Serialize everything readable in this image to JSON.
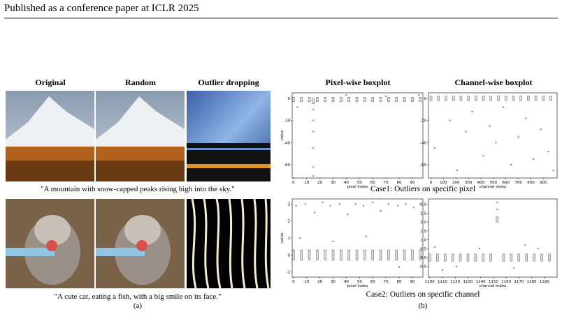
{
  "header": {
    "text": "Published as a conference paper at ICLR 2025"
  },
  "figure_a": {
    "column_titles": [
      "Original",
      "Random",
      "Outlier dropping"
    ],
    "captions": [
      "\"A mountain with snow-capped peaks rising high into the sky.\"",
      "\"A cute cat, eating a fish, with a big smile on its face.\""
    ],
    "label": "(a)"
  },
  "figure_b": {
    "column_titles": [
      "Pixel-wise boxplot",
      "Channel-wise boxplot"
    ],
    "case_captions": [
      "Case1: Outliers on specific pixel",
      "Case2: Outliers on specific channel"
    ],
    "label": "(b)"
  },
  "chart_data": [
    {
      "type": "box",
      "xlabel": "pixel index",
      "ylabel": "value",
      "xlim": [
        -1,
        98
      ],
      "xticks": [
        0,
        10,
        20,
        30,
        40,
        50,
        60,
        70,
        80,
        90
      ],
      "ylim": [
        -72,
        5
      ],
      "yticks": [
        0,
        -20,
        -40,
        -60
      ],
      "x": [
        0,
        6,
        12,
        15,
        18,
        24,
        30,
        36,
        42,
        48,
        54,
        60,
        66,
        72,
        78,
        84,
        90,
        96
      ],
      "low": [
        -3,
        -3,
        -3,
        -5,
        -3,
        -3,
        -3,
        -3,
        -3,
        -3,
        -3,
        -3,
        -3,
        -3,
        -3,
        -3,
        -3,
        -3
      ],
      "high": [
        1,
        1,
        1,
        0,
        1,
        1,
        1,
        1,
        1,
        1,
        1,
        1,
        1,
        1,
        1,
        1,
        1,
        1
      ],
      "outliers": {
        "x": [
          15,
          15,
          15,
          15,
          15,
          15,
          3,
          40,
          70,
          95
        ],
        "y": [
          -10,
          -20,
          -30,
          -45,
          -62,
          -70,
          -8,
          3,
          2,
          3
        ]
      }
    },
    {
      "type": "box",
      "xlabel": "channel index",
      "xlim": [
        -20,
        1010
      ],
      "xticks": [
        0,
        100,
        200,
        300,
        400,
        500,
        600,
        700,
        800,
        900
      ],
      "ylim": [
        -72,
        5
      ],
      "yticks": [
        0,
        -20,
        -40,
        -60
      ],
      "x": [
        0,
        60,
        120,
        180,
        240,
        300,
        360,
        420,
        480,
        540,
        600,
        660,
        720,
        780,
        840,
        900,
        960
      ],
      "low": [
        -2,
        -2,
        -2,
        -2,
        -2,
        -2,
        -2,
        -2,
        -2,
        -2,
        -2,
        -2,
        -2,
        -2,
        -2,
        -2,
        -2
      ],
      "high": [
        2,
        2,
        2,
        2,
        2,
        2,
        2,
        2,
        2,
        2,
        2,
        2,
        2,
        2,
        2,
        2,
        2
      ],
      "outliers": {
        "x": [
          30,
          150,
          210,
          280,
          330,
          420,
          470,
          520,
          580,
          640,
          700,
          760,
          820,
          880,
          940,
          980
        ],
        "y": [
          -45,
          -20,
          -65,
          -30,
          -12,
          -52,
          -25,
          -40,
          -8,
          -60,
          -35,
          -18,
          -55,
          -28,
          -48,
          -65
        ]
      }
    },
    {
      "type": "box",
      "xlabel": "pixel index",
      "ylabel": "value",
      "xlim": [
        -1,
        98
      ],
      "xticks": [
        0,
        10,
        20,
        30,
        40,
        50,
        60,
        70,
        80,
        90
      ],
      "ylim": [
        -1.3,
        3.3
      ],
      "yticks": [
        -1,
        0,
        1,
        2,
        3
      ],
      "x": [
        0,
        6,
        12,
        18,
        24,
        30,
        36,
        42,
        48,
        54,
        60,
        66,
        72,
        78,
        84,
        90,
        96
      ],
      "low": [
        -0.3,
        -0.3,
        -0.3,
        -0.3,
        -0.3,
        -0.3,
        -0.3,
        -0.3,
        -0.3,
        -0.3,
        -0.3,
        -0.3,
        -0.3,
        -0.3,
        -0.3,
        -0.3,
        -0.3
      ],
      "high": [
        0.3,
        0.3,
        0.3,
        0.3,
        0.3,
        0.3,
        0.3,
        0.3,
        0.3,
        0.3,
        0.3,
        0.3,
        0.3,
        0.3,
        0.3,
        0.3,
        0.3
      ],
      "outliers": {
        "x": [
          2,
          9,
          16,
          22,
          28,
          35,
          41,
          47,
          53,
          60,
          66,
          72,
          79,
          85,
          91,
          96,
          5,
          30,
          55,
          80
        ],
        "y": [
          2.9,
          3.0,
          2.5,
          3.1,
          2.9,
          3.0,
          2.4,
          3.0,
          2.9,
          3.1,
          2.6,
          3.0,
          2.9,
          3.0,
          2.8,
          3.0,
          1.0,
          0.8,
          1.1,
          -0.7
        ]
      }
    },
    {
      "type": "box",
      "xlabel": "channel index",
      "xlim": [
        1099,
        1200
      ],
      "xticks": [
        1100,
        1110,
        1120,
        1130,
        1140,
        1150,
        1160,
        1170,
        1180,
        1190
      ],
      "ylim": [
        -1.1,
        3.3
      ],
      "yticks": [
        {
          "value": -0.5,
          "label": "-0.5"
        },
        {
          "value": 0,
          "label": "0.0"
        },
        {
          "value": 0.5,
          "label": "0.5"
        },
        {
          "value": 1,
          "label": "1.0"
        },
        {
          "value": 1.5,
          "label": "1.5"
        },
        {
          "value": 2,
          "label": "2.0"
        },
        {
          "value": 2.5,
          "label": "2.5"
        },
        {
          "value": 3,
          "label": "3.0"
        }
      ],
      "x": [
        1100,
        1106,
        1112,
        1118,
        1124,
        1130,
        1136,
        1142,
        1148,
        1153,
        1158,
        1164,
        1170,
        1176,
        1182,
        1188,
        1194
      ],
      "low": [
        -0.2,
        -0.2,
        -0.2,
        -0.2,
        -0.2,
        -0.2,
        -0.2,
        -0.2,
        -0.2,
        2.0,
        -0.2,
        -0.2,
        -0.2,
        -0.2,
        -0.2,
        -0.2,
        -0.2
      ],
      "high": [
        0.2,
        0.2,
        0.2,
        0.2,
        0.2,
        0.2,
        0.2,
        0.2,
        0.2,
        2.3,
        0.2,
        0.2,
        0.2,
        0.2,
        0.2,
        0.2,
        0.2
      ],
      "outliers": {
        "x": [
          1153,
          1153,
          1104,
          1121,
          1139,
          1166,
          1185,
          1110,
          1175
        ],
        "y": [
          3.1,
          2.7,
          0.6,
          -0.5,
          0.5,
          -0.6,
          0.5,
          -0.7,
          0.7
        ]
      }
    }
  ]
}
